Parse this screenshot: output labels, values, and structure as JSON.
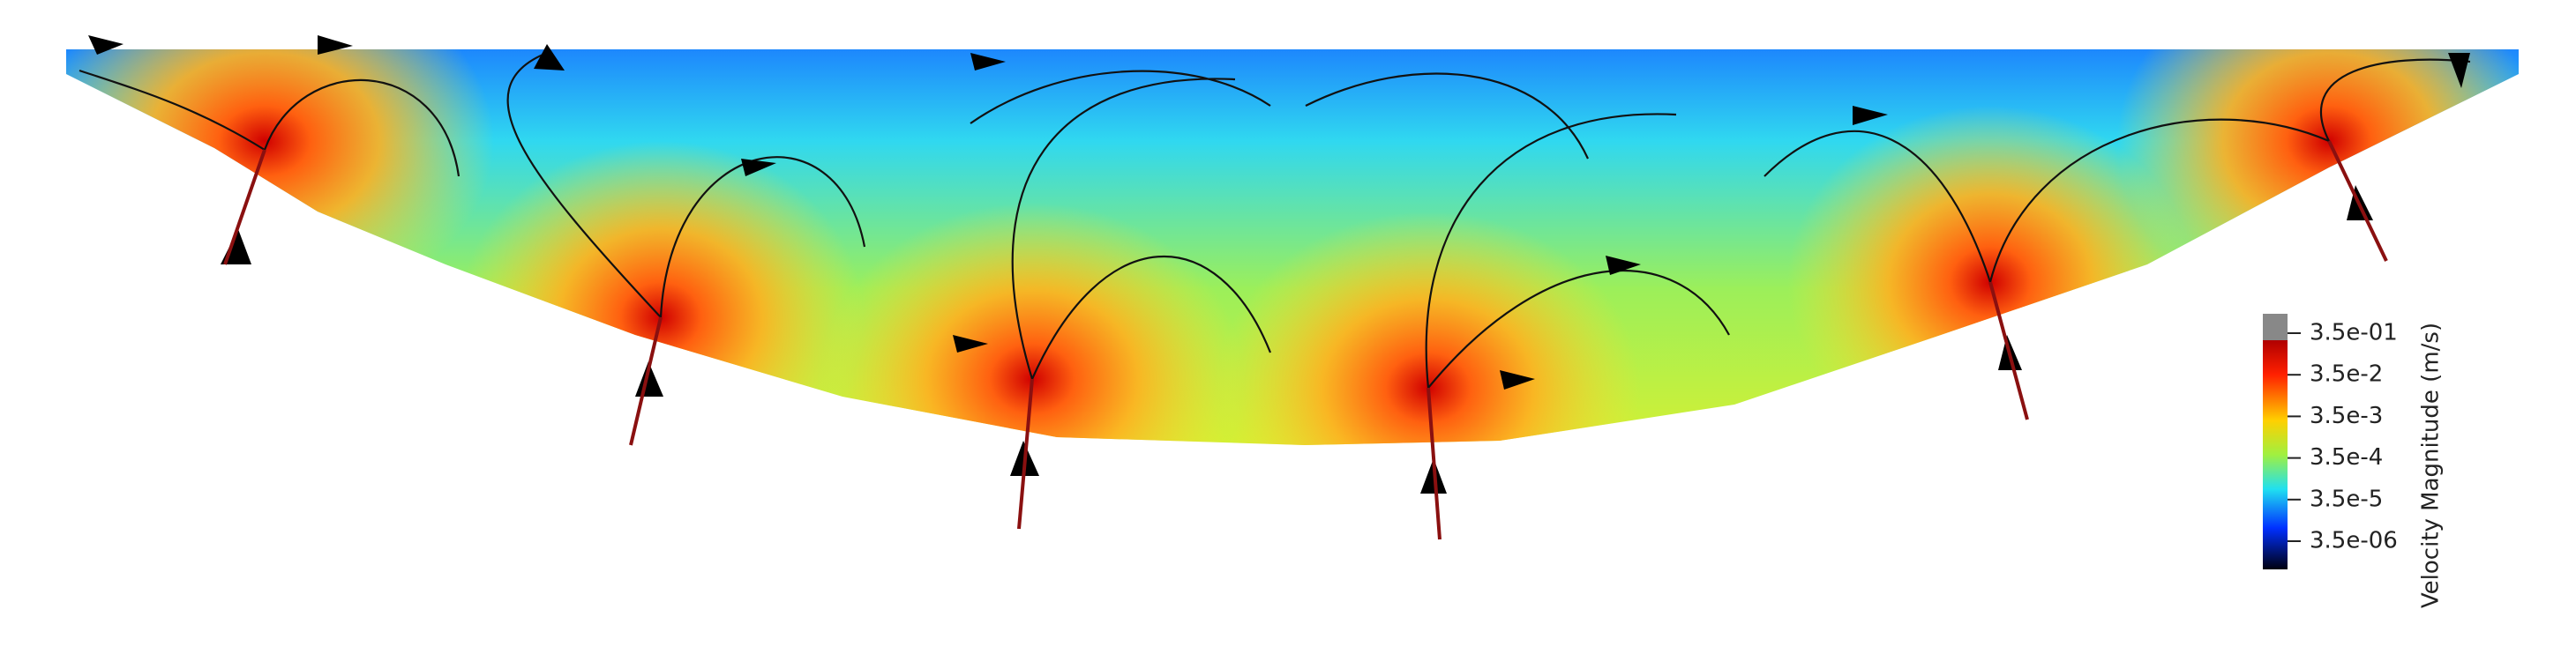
{
  "colorbar": {
    "title": "Velocity Magnitude (m/s)",
    "labels": [
      "3.5e-01",
      "3.5e-2",
      "3.5e-3",
      "3.5e-4",
      "3.5e-5",
      "3.5e-06"
    ]
  }
}
